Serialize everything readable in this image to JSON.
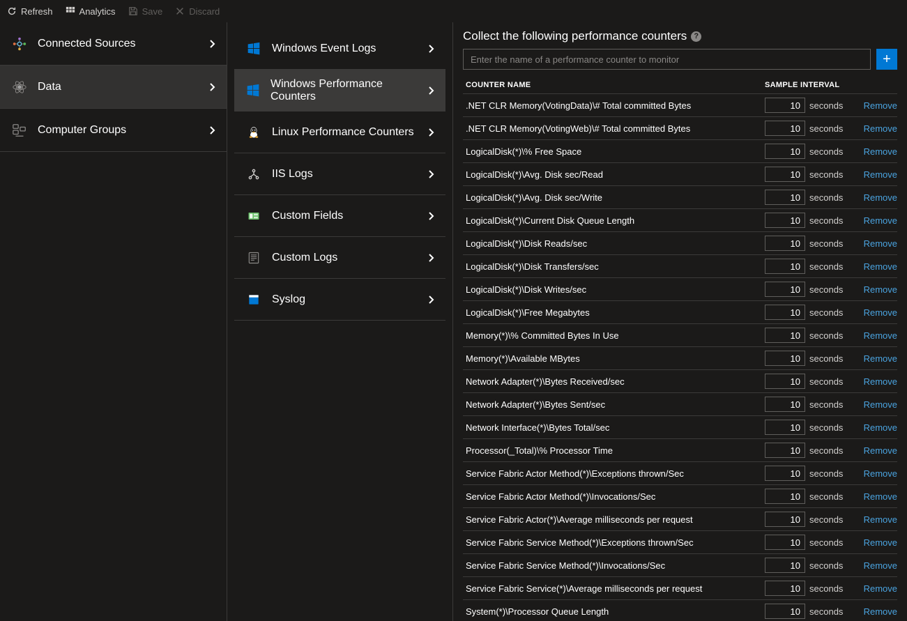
{
  "toolbar": {
    "refresh": "Refresh",
    "analytics": "Analytics",
    "save": "Save",
    "discard": "Discard"
  },
  "sidebar": {
    "items": [
      {
        "label": "Connected Sources",
        "icon": "connected-sources"
      },
      {
        "label": "Data",
        "icon": "data",
        "active": true
      },
      {
        "label": "Computer Groups",
        "icon": "computer-groups"
      }
    ]
  },
  "submenu": {
    "items": [
      {
        "label": "Windows Event Logs",
        "icon": "windows"
      },
      {
        "label": "Windows Performance Counters",
        "icon": "windows",
        "active": true
      },
      {
        "label": "Linux Performance Counters",
        "icon": "linux"
      },
      {
        "label": "IIS Logs",
        "icon": "iis"
      },
      {
        "label": "Custom Fields",
        "icon": "fields"
      },
      {
        "label": "Custom Logs",
        "icon": "logs"
      },
      {
        "label": "Syslog",
        "icon": "syslog"
      }
    ]
  },
  "pane": {
    "title": "Collect the following performance counters",
    "input_placeholder": "Enter the name of a performance counter to monitor",
    "add_symbol": "+",
    "columns": {
      "name": "COUNTER NAME",
      "interval": "SAMPLE INTERVAL"
    },
    "seconds_label": "seconds",
    "remove_label": "Remove",
    "counters": [
      {
        "name": ".NET CLR Memory(VotingData)\\# Total committed Bytes",
        "interval": 10
      },
      {
        "name": ".NET CLR Memory(VotingWeb)\\# Total committed Bytes",
        "interval": 10
      },
      {
        "name": "LogicalDisk(*)\\% Free Space",
        "interval": 10
      },
      {
        "name": "LogicalDisk(*)\\Avg. Disk sec/Read",
        "interval": 10
      },
      {
        "name": "LogicalDisk(*)\\Avg. Disk sec/Write",
        "interval": 10
      },
      {
        "name": "LogicalDisk(*)\\Current Disk Queue Length",
        "interval": 10
      },
      {
        "name": "LogicalDisk(*)\\Disk Reads/sec",
        "interval": 10
      },
      {
        "name": "LogicalDisk(*)\\Disk Transfers/sec",
        "interval": 10
      },
      {
        "name": "LogicalDisk(*)\\Disk Writes/sec",
        "interval": 10
      },
      {
        "name": "LogicalDisk(*)\\Free Megabytes",
        "interval": 10
      },
      {
        "name": "Memory(*)\\% Committed Bytes In Use",
        "interval": 10
      },
      {
        "name": "Memory(*)\\Available MBytes",
        "interval": 10
      },
      {
        "name": "Network Adapter(*)\\Bytes Received/sec",
        "interval": 10
      },
      {
        "name": "Network Adapter(*)\\Bytes Sent/sec",
        "interval": 10
      },
      {
        "name": "Network Interface(*)\\Bytes Total/sec",
        "interval": 10
      },
      {
        "name": "Processor(_Total)\\% Processor Time",
        "interval": 10
      },
      {
        "name": "Service Fabric Actor Method(*)\\Exceptions thrown/Sec",
        "interval": 10
      },
      {
        "name": "Service Fabric Actor Method(*)\\Invocations/Sec",
        "interval": 10
      },
      {
        "name": "Service Fabric Actor(*)\\Average milliseconds per request",
        "interval": 10
      },
      {
        "name": "Service Fabric Service Method(*)\\Exceptions thrown/Sec",
        "interval": 10
      },
      {
        "name": "Service Fabric Service Method(*)\\Invocations/Sec",
        "interval": 10
      },
      {
        "name": "Service Fabric Service(*)\\Average milliseconds per request",
        "interval": 10
      },
      {
        "name": "System(*)\\Processor Queue Length",
        "interval": 10
      }
    ]
  },
  "colors": {
    "bg": "#1b1a19",
    "active": "#323130",
    "active2": "#3b3a39",
    "border": "#3b3a39",
    "text": "#ffffff",
    "muted": "#8a8886",
    "disabled": "#605e5c",
    "accent": "#0078d4",
    "link": "#4aa3df"
  }
}
